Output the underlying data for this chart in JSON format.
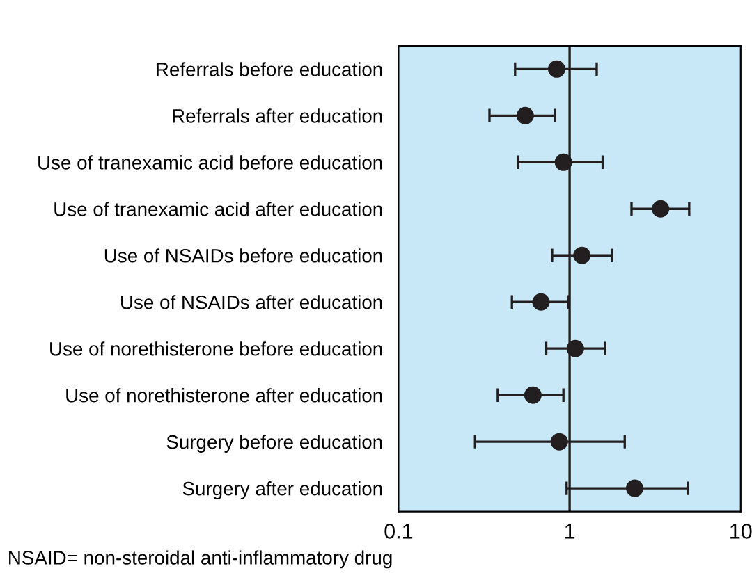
{
  "chart_data": {
    "type": "scatter",
    "orientation": "horizontal",
    "log": "x",
    "categories": [
      "Referrals before education",
      "Referrals after education",
      "Use of tranexamic acid before education",
      "Use of tranexamic acid after education",
      "Use of NSAIDs before education",
      "Use of NSAIDs after education",
      "Use of norethisterone before education",
      "Use of norethisterone after education",
      "Surgery before education",
      "Surgery after education"
    ],
    "series": [
      {
        "color": "#231f20",
        "values": [
          0.84,
          0.55,
          0.92,
          3.4,
          1.18,
          0.68,
          1.08,
          0.61,
          0.87,
          2.4
        ],
        "errors": [
          [
            0.48,
            1.44
          ],
          [
            0.34,
            0.82
          ],
          [
            0.5,
            1.56
          ],
          [
            2.3,
            5.0
          ],
          [
            0.79,
            1.77
          ],
          [
            0.46,
            0.98
          ],
          [
            0.73,
            1.61
          ],
          [
            0.38,
            0.92
          ],
          [
            0.28,
            2.1
          ],
          [
            0.96,
            4.9
          ]
        ]
      }
    ],
    "xlim": [
      0.1,
      10
    ],
    "xticks": [
      0.1,
      1,
      10
    ],
    "ref_lines": [
      {
        "axis": "x",
        "value": 1,
        "color": "#231f20"
      }
    ],
    "marker": "circle",
    "grid": false,
    "legend": false,
    "annotations": [
      "NSAID= non-steroidal anti-inflammatory drug"
    ]
  }
}
